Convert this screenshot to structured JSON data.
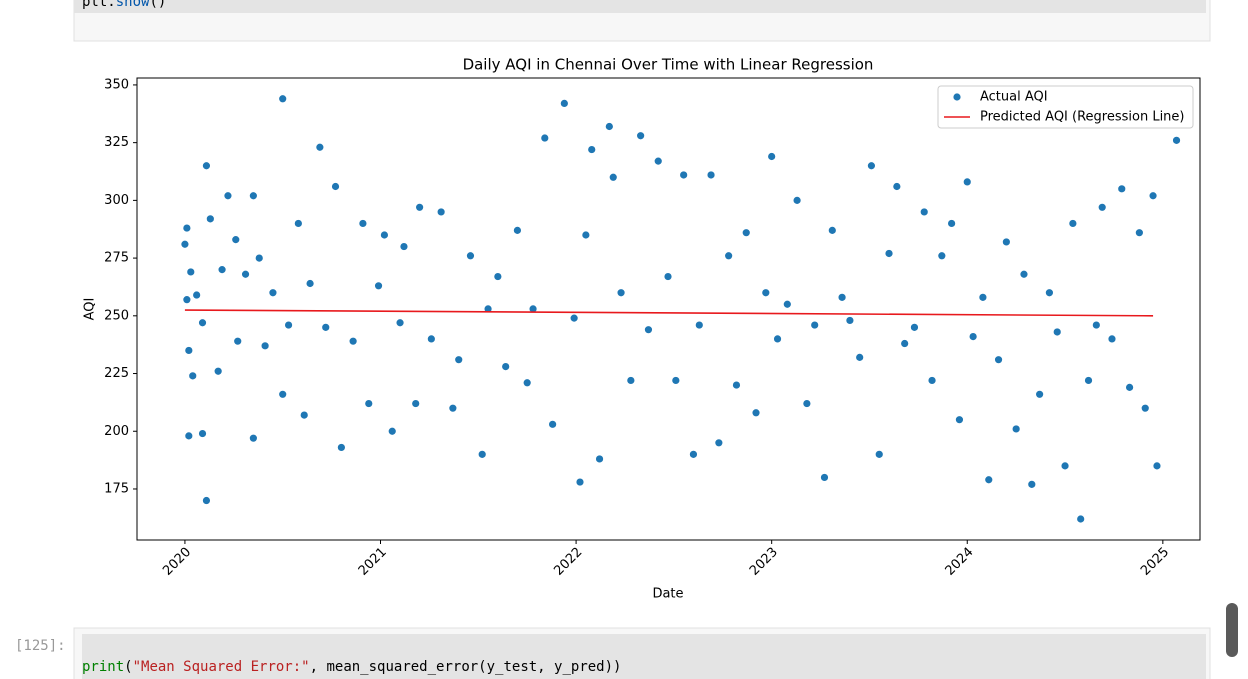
{
  "top_cell": {
    "code": [
      "plt.",
      "show",
      "()"
    ]
  },
  "bottom_cell": {
    "prompt": "[125]:",
    "code": [
      "print",
      "(",
      "\"Mean Squared Error:\"",
      ", mean_squared_error(y_test, y_pred))"
    ]
  },
  "chart_data": {
    "type": "scatter",
    "title": "Daily AQI in Chennai Over Time with Linear Regression",
    "x_label": "Date",
    "y_label": "AQI",
    "xlim": [
      2019.755,
      2025.19
    ],
    "xticks": [
      2020,
      2021,
      2022,
      2023,
      2024,
      2025
    ],
    "ylim": [
      152.9,
      353
    ],
    "yticks": [
      175,
      200,
      225,
      250,
      275,
      300,
      325,
      350
    ],
    "legend": "upper right",
    "series": [
      {
        "name": "Actual AQI",
        "color": "#1f77b4",
        "mode": "markers",
        "x": [
          2020.0,
          2020.01,
          2020.01,
          2020.02,
          2020.02,
          2020.03,
          2020.04,
          2020.06,
          2020.09,
          2020.09,
          2020.11,
          2020.11,
          2020.13,
          2020.17,
          2020.19,
          2020.22,
          2020.26,
          2020.27,
          2020.31,
          2020.35,
          2020.35,
          2020.38,
          2020.41,
          2020.45,
          2020.5,
          2020.5,
          2020.53,
          2020.58,
          2020.61,
          2020.64,
          2020.69,
          2020.72,
          2020.77,
          2020.8,
          2020.86,
          2020.91,
          2020.94,
          2020.99,
          2021.02,
          2021.06,
          2021.1,
          2021.12,
          2021.18,
          2021.2,
          2021.26,
          2021.31,
          2021.37,
          2021.4,
          2021.46,
          2021.52,
          2021.55,
          2021.6,
          2021.64,
          2021.7,
          2021.75,
          2021.78,
          2021.84,
          2021.88,
          2021.94,
          2021.99,
          2022.02,
          2022.05,
          2022.08,
          2022.12,
          2022.17,
          2022.19,
          2022.23,
          2022.28,
          2022.33,
          2022.37,
          2022.42,
          2022.47,
          2022.51,
          2022.55,
          2022.6,
          2022.63,
          2022.69,
          2022.73,
          2022.78,
          2022.82,
          2022.87,
          2022.92,
          2022.97,
          2023.0,
          2023.03,
          2023.08,
          2023.13,
          2023.18,
          2023.22,
          2023.27,
          2023.31,
          2023.36,
          2023.4,
          2023.45,
          2023.51,
          2023.55,
          2023.6,
          2023.64,
          2023.68,
          2023.73,
          2023.78,
          2023.82,
          2023.87,
          2023.92,
          2023.96,
          2024.0,
          2024.03,
          2024.08,
          2024.11,
          2024.16,
          2024.2,
          2024.25,
          2024.29,
          2024.33,
          2024.37,
          2024.42,
          2024.46,
          2024.5,
          2024.54,
          2024.58,
          2024.62,
          2024.66,
          2024.69,
          2024.74,
          2024.79,
          2024.83,
          2024.88,
          2024.91,
          2024.95,
          2024.97,
          2025.07
        ],
        "values": [
          281,
          257,
          288,
          198,
          235,
          269,
          224,
          259,
          247,
          199,
          170,
          315,
          292,
          226,
          270,
          302,
          283,
          239,
          268,
          302,
          197,
          275,
          237,
          260,
          344,
          216,
          246,
          290,
          207,
          264,
          323,
          245,
          306,
          193,
          239,
          290,
          212,
          263,
          285,
          200,
          247,
          280,
          212,
          297,
          240,
          295,
          210,
          231,
          276,
          190,
          253,
          267,
          228,
          287,
          221,
          253,
          327,
          203,
          342,
          249,
          178,
          285,
          322,
          188,
          332,
          310,
          260,
          222,
          328,
          244,
          317,
          267,
          222,
          311,
          190,
          246,
          311,
          195,
          276,
          220,
          286,
          208,
          260,
          319,
          240,
          255,
          300,
          212,
          246,
          180,
          287,
          258,
          248,
          232,
          315,
          190,
          277,
          306,
          238,
          245,
          295,
          222,
          276,
          290,
          205,
          308,
          241,
          258,
          179,
          231,
          282,
          201,
          268,
          177,
          216,
          260,
          243,
          185,
          290,
          162,
          222,
          246,
          297,
          240,
          305,
          219,
          286,
          210,
          302,
          185,
          326
        ]
      },
      {
        "name": "Predicted AQI (Regression Line)",
        "color": "#e8191d",
        "mode": "line",
        "x": [
          2020.0,
          2024.95
        ],
        "values": [
          252.5,
          250
        ]
      }
    ]
  }
}
